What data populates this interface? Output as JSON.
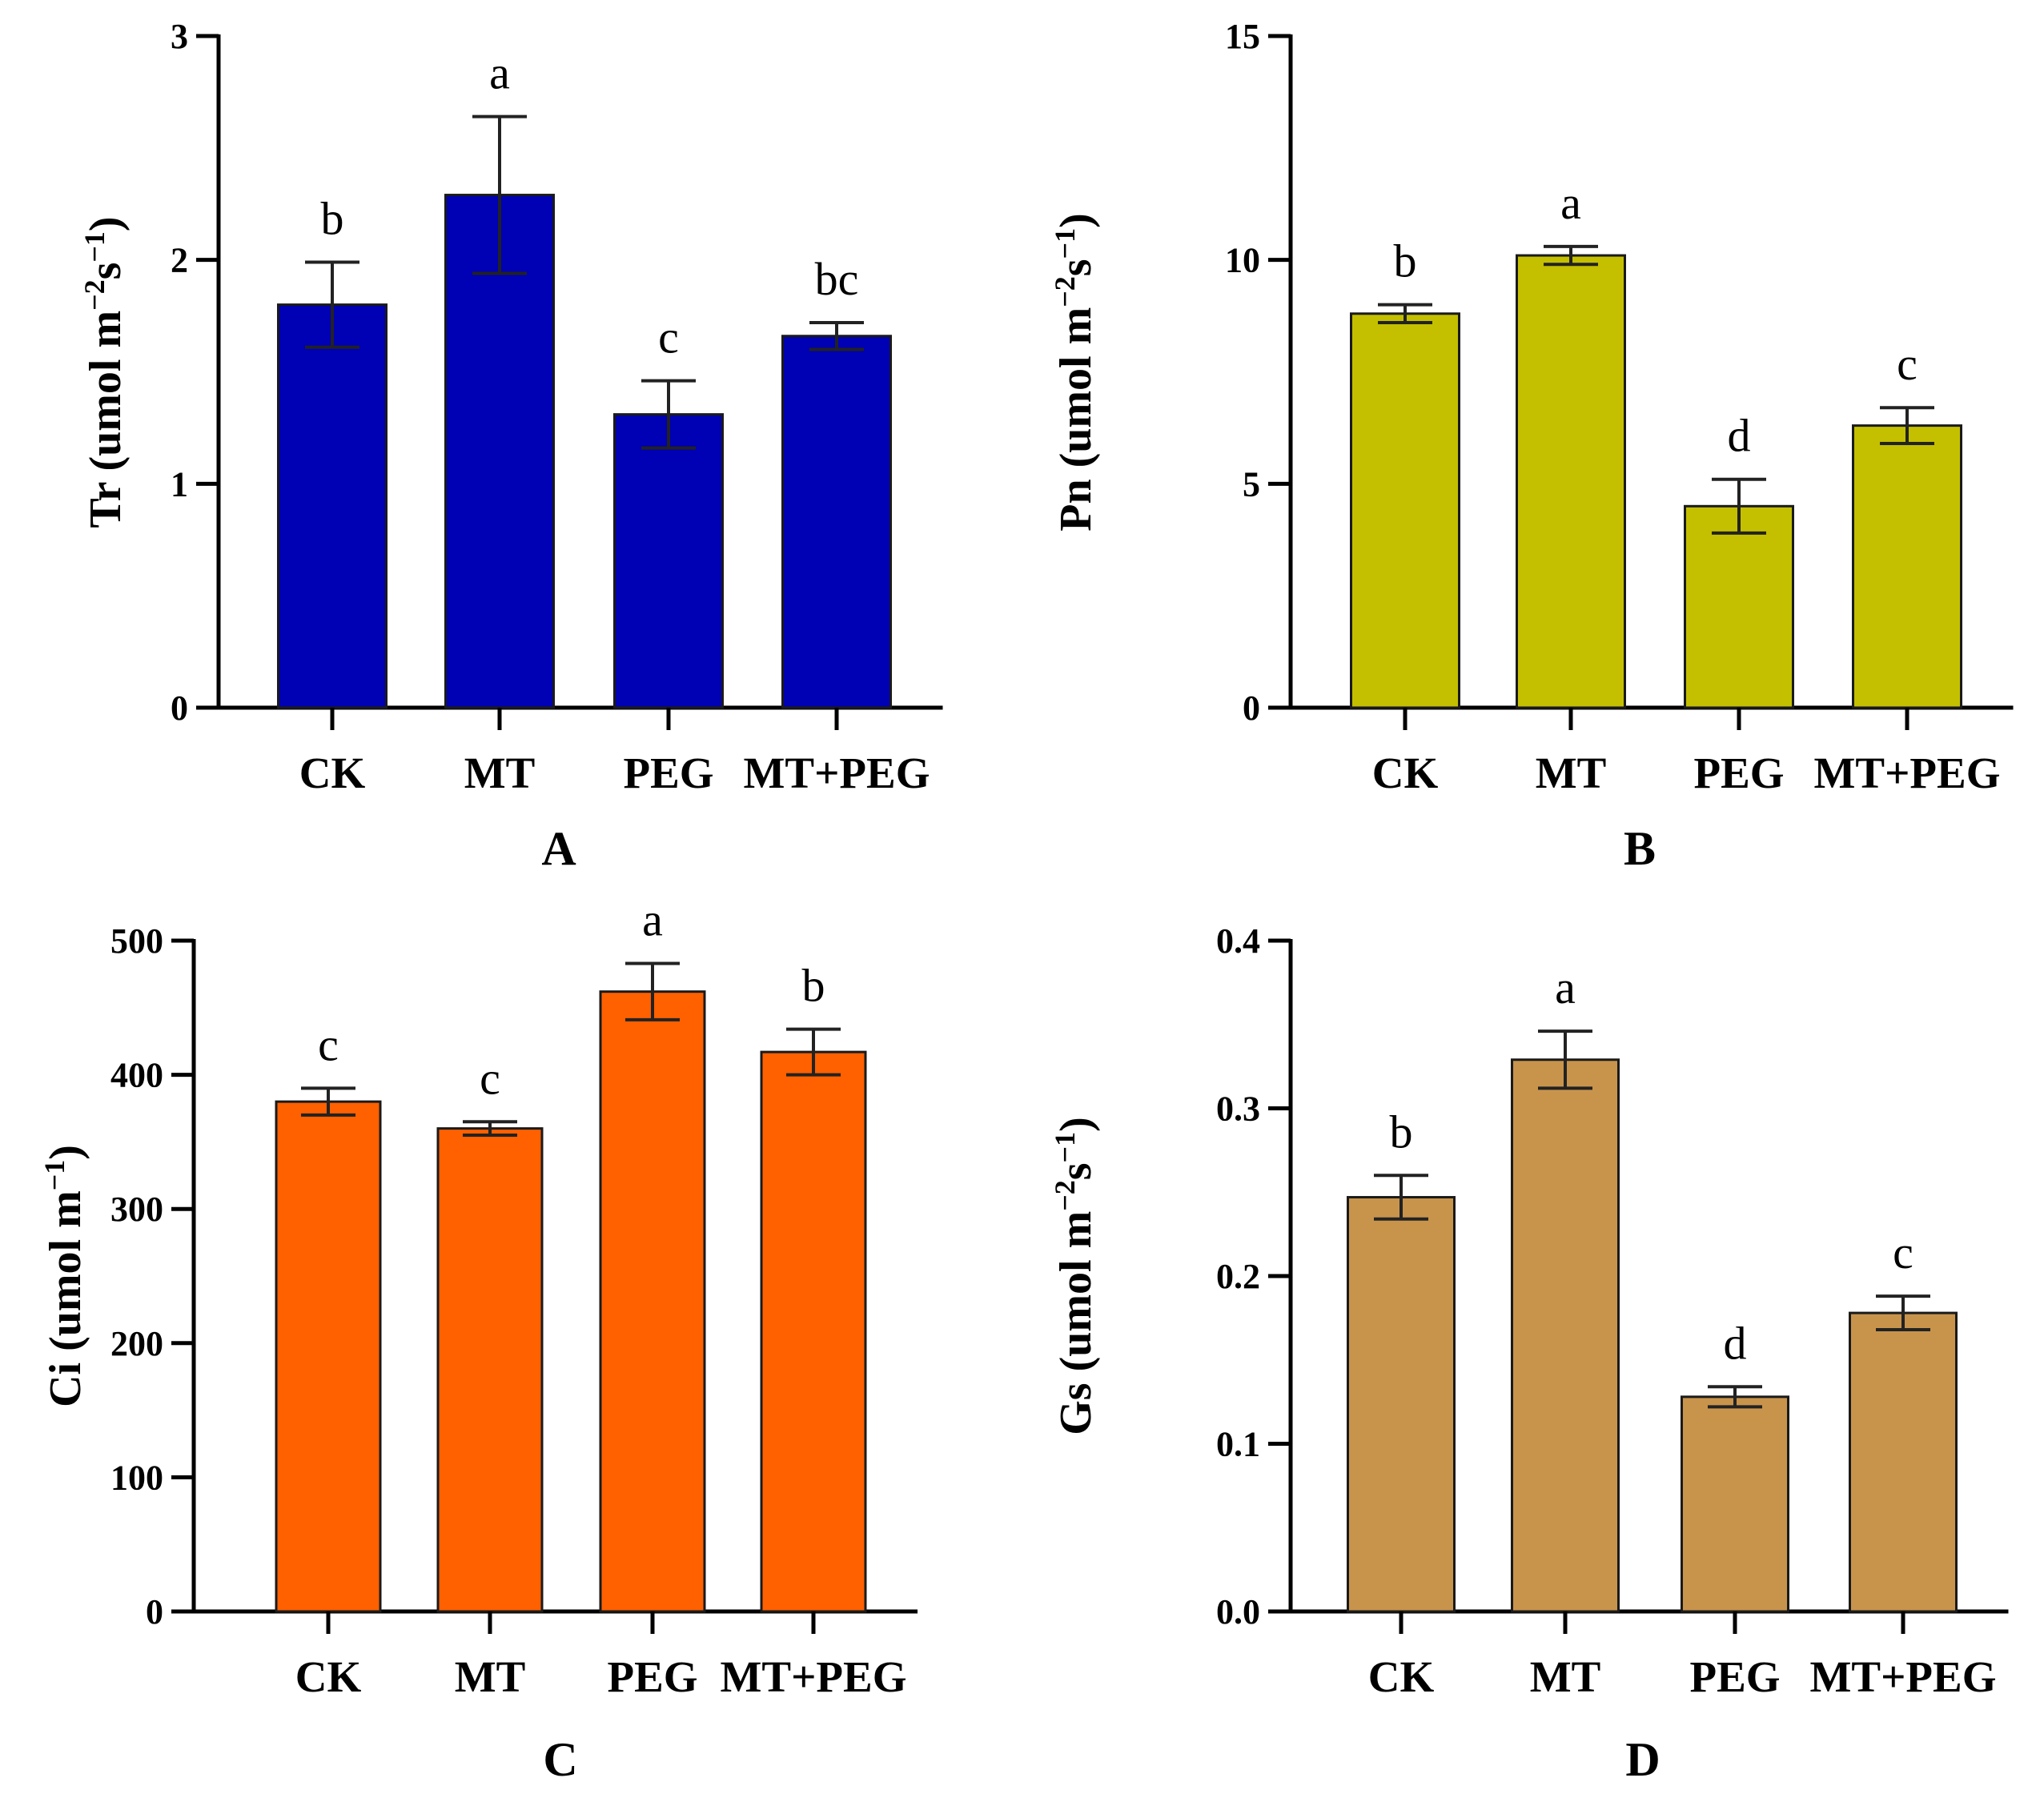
{
  "chart_data": [
    {
      "type": "bar",
      "panel": "A",
      "ylabel": {
        "text": "Tr (umol m",
        "sup1": "−2",
        "mid": "s",
        "sup2": "−1",
        "end": ")"
      },
      "categories": [
        "CK",
        "MT",
        "PEG",
        "MT+PEG"
      ],
      "values": [
        1.8,
        2.29,
        1.31,
        1.66
      ],
      "errors": [
        0.19,
        0.35,
        0.15,
        0.06
      ],
      "significance": [
        "b",
        "a",
        "c",
        "bc"
      ],
      "ylim": [
        0,
        3
      ],
      "yticks": [
        0,
        1,
        2,
        3
      ],
      "ytick_labels": [
        "0",
        "1",
        "2",
        "3"
      ],
      "color": "#0000b4",
      "grid": false
    },
    {
      "type": "bar",
      "panel": "B",
      "ylabel": {
        "text": "Pn (umol m",
        "sup1": "−2",
        "mid": "s",
        "sup2": "−1",
        "end": ")"
      },
      "categories": [
        "CK",
        "MT",
        "PEG",
        "MT+PEG"
      ],
      "values": [
        8.8,
        10.1,
        4.5,
        6.3
      ],
      "errors": [
        0.2,
        0.2,
        0.6,
        0.4
      ],
      "significance": [
        "b",
        "a",
        "d",
        "c"
      ],
      "ylim": [
        0,
        15
      ],
      "yticks": [
        0,
        5,
        10,
        15
      ],
      "ytick_labels": [
        "0",
        "5",
        "10",
        "15"
      ],
      "color": "#c4c000",
      "grid": false
    },
    {
      "type": "bar",
      "panel": "C",
      "ylabel": {
        "text": "Ci (umol m",
        "sup1": "−1",
        "mid": "",
        "sup2": "",
        "end": ")"
      },
      "categories": [
        "CK",
        "MT",
        "PEG",
        "MT+PEG"
      ],
      "values": [
        380,
        360,
        462,
        417
      ],
      "errors": [
        10,
        5,
        21,
        17
      ],
      "significance": [
        "c",
        "c",
        "a",
        "b"
      ],
      "ylim": [
        0,
        500
      ],
      "yticks": [
        0,
        100,
        200,
        300,
        400,
        500
      ],
      "ytick_labels": [
        "0",
        "100",
        "200",
        "300",
        "400",
        "500"
      ],
      "color": "#ff6000",
      "grid": false
    },
    {
      "type": "bar",
      "panel": "D",
      "ylabel": {
        "text": "Gs (umol m",
        "sup1": "−2",
        "mid": "s",
        "sup2": "−1",
        "end": ")"
      },
      "categories": [
        "CK",
        "MT",
        "PEG",
        "MT+PEG"
      ],
      "values": [
        0.247,
        0.329,
        0.128,
        0.178
      ],
      "errors": [
        0.013,
        0.017,
        0.006,
        0.01
      ],
      "significance": [
        "b",
        "a",
        "d",
        "c"
      ],
      "ylim": [
        0,
        0.4
      ],
      "yticks": [
        0,
        0.1,
        0.2,
        0.3,
        0.4
      ],
      "ytick_labels": [
        "0.0",
        "0.1",
        "0.2",
        "0.3",
        "0.4"
      ],
      "color": "#c8944c",
      "grid": false
    }
  ]
}
